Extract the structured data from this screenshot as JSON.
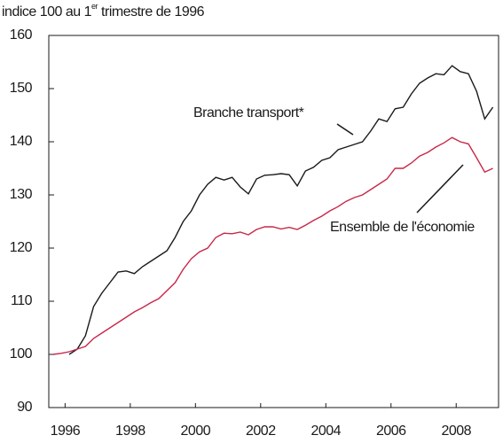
{
  "chart_data": {
    "type": "line",
    "title": [
      "indice 100 au 1",
      "er",
      "trimestre de 1996"
    ],
    "x": [
      1995.625,
      1995.875,
      1996.125,
      1996.375,
      1996.625,
      1996.875,
      1997.125,
      1997.375,
      1997.625,
      1997.875,
      1998.125,
      1998.375,
      1998.625,
      1998.875,
      1999.125,
      1999.375,
      1999.625,
      1999.875,
      2000.125,
      2000.375,
      2000.625,
      2000.875,
      2001.125,
      2001.375,
      2001.625,
      2001.875,
      2002.125,
      2002.375,
      2002.625,
      2002.875,
      2003.125,
      2003.375,
      2003.625,
      2003.875,
      2004.125,
      2004.375,
      2004.625,
      2004.875,
      2005.125,
      2005.375,
      2005.625,
      2005.875,
      2006.125,
      2006.375,
      2006.625,
      2006.875,
      2007.125,
      2007.375,
      2007.625,
      2007.875,
      2008.125,
      2008.375,
      2008.625,
      2008.875,
      2009.125
    ],
    "series": [
      {
        "name": "Branche transport*",
        "color": "#1a1a1a",
        "values": [
          null,
          null,
          100,
          101,
          103.5,
          109,
          111.5,
          113.5,
          115.5,
          115.7,
          115.2,
          116.5,
          117.5,
          118.5,
          119.5,
          122,
          125,
          127,
          130,
          132,
          133.3,
          132.8,
          133.3,
          131.5,
          130.2,
          133,
          133.7,
          133.8,
          134,
          133.8,
          131.7,
          134.5,
          135.2,
          136.5,
          137,
          138.5,
          139,
          139.5,
          140,
          142,
          144.3,
          143.8,
          146.2,
          146.5,
          149,
          151,
          152,
          152.8,
          152.6,
          154.3,
          153.2,
          152.8,
          149.5,
          144.3,
          146.5
        ]
      },
      {
        "name": "Ensemble de l'économie",
        "color": "#c8274a",
        "values": [
          100,
          100.2,
          100.5,
          101,
          101.5,
          103,
          104,
          105,
          106,
          107,
          108,
          108.8,
          109.7,
          110.5,
          112,
          113.5,
          116,
          118,
          119.3,
          120,
          122,
          122.8,
          122.7,
          123,
          122.5,
          123.5,
          124,
          124,
          123.6,
          123.9,
          123.5,
          124.3,
          125.2,
          126,
          127,
          127.8,
          128.8,
          129.5,
          130,
          131,
          132,
          133,
          135,
          135,
          136,
          137.3,
          138,
          139,
          139.8,
          140.8,
          140,
          139.6,
          137,
          134.3,
          135
        ]
      }
    ],
    "xlim": [
      1995.5,
      2009.3
    ],
    "xticks": [
      1996,
      1998,
      2000,
      2002,
      2004,
      2006,
      2008
    ],
    "ylim": [
      90,
      160
    ],
    "yticks": [
      90,
      100,
      110,
      120,
      130,
      140,
      150,
      160
    ]
  }
}
